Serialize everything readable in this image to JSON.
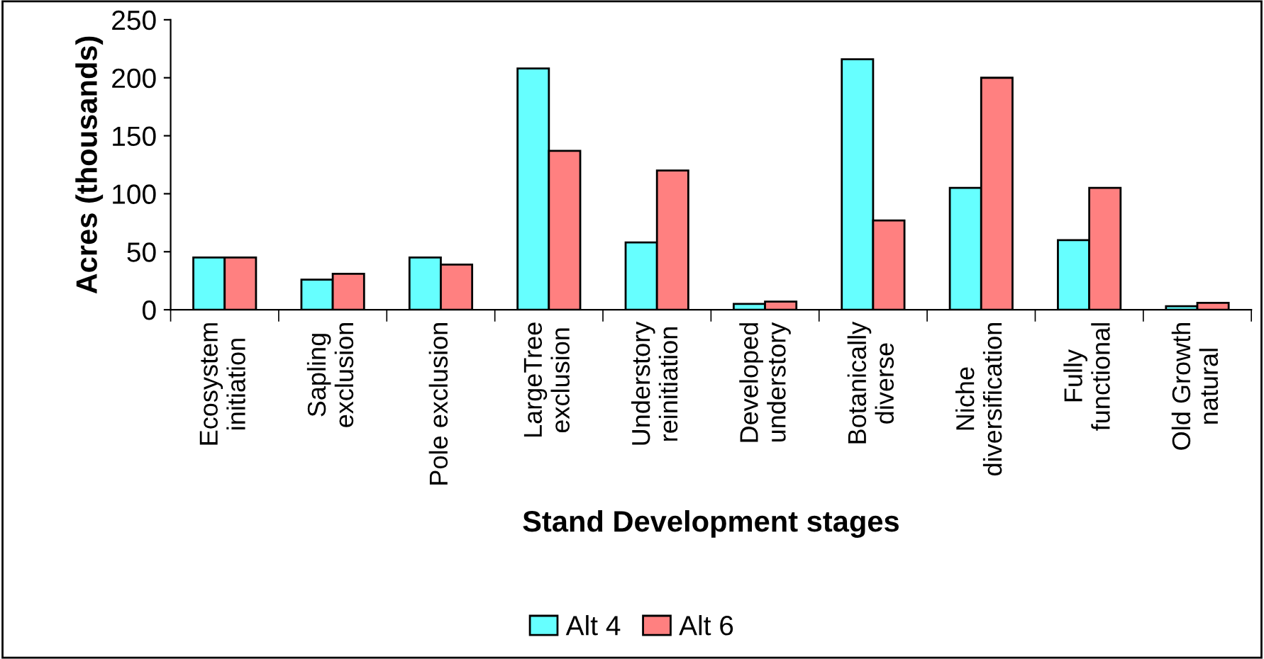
{
  "chart_data": {
    "type": "bar",
    "xlabel": "Stand Development stages",
    "ylabel": "Acres (thousands)",
    "categories": [
      "Ecosystem\ninitiation",
      "Sapling\nexclusion",
      "Pole exclusion",
      "LargeTree\nexclusion",
      "Understory\nreinitiation",
      "Developed\nunderstory",
      "Botanically\ndiverse",
      "Niche\ndiversification",
      "Fully\nfunctional",
      "Old Growth\nnatural"
    ],
    "series": [
      {
        "name": "Alt 4",
        "color": "#66ffff",
        "values": [
          45,
          26,
          45,
          208,
          58,
          5,
          216,
          105,
          60,
          3
        ]
      },
      {
        "name": "Alt 6",
        "color": "#ff8080",
        "values": [
          45,
          31,
          39,
          137,
          120,
          7,
          77,
          200,
          105,
          6
        ]
      }
    ],
    "ylim": [
      0,
      250
    ],
    "yticks": [
      0,
      50,
      100,
      150,
      200,
      250
    ],
    "grid": false,
    "legend": "bottom"
  }
}
